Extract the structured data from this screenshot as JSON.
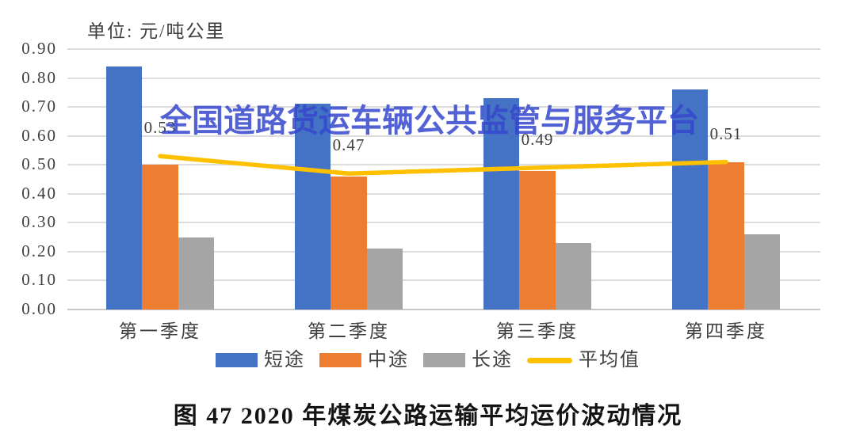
{
  "unit_label": "单位: 元/吨公里",
  "watermark_text": "全国道路货运车辆公共监管与服务平台",
  "caption": "图 47 2020 年煤炭公路运输平均运价波动情况",
  "colors": {
    "short_haul": "#4472C4",
    "mid_haul": "#ED7D31",
    "long_haul": "#A5A5A5",
    "average_line": "#FFC000",
    "watermark": "#3547CD",
    "gridline": "#DCDCDC",
    "axis_text": "#3F3F3F"
  },
  "chart_data": {
    "type": "bar",
    "title": "图 47 2020 年煤炭公路运输平均运价波动情况",
    "unit": "元/吨公里",
    "categories": [
      "第一季度",
      "第二季度",
      "第三季度",
      "第四季度"
    ],
    "series": [
      {
        "name": "短途",
        "kind": "bar",
        "color": "#4472C4",
        "values": [
          0.84,
          0.71,
          0.73,
          0.76
        ]
      },
      {
        "name": "中途",
        "kind": "bar",
        "color": "#ED7D31",
        "values": [
          0.5,
          0.46,
          0.48,
          0.51
        ]
      },
      {
        "name": "长途",
        "kind": "bar",
        "color": "#A5A5A5",
        "values": [
          0.25,
          0.21,
          0.23,
          0.26
        ]
      },
      {
        "name": "平均值",
        "kind": "line",
        "color": "#FFC000",
        "values": [
          0.53,
          0.47,
          0.49,
          0.51
        ],
        "point_labels": [
          "0.53",
          "0.47",
          "0.49",
          "0.51"
        ]
      }
    ],
    "ylim": [
      0,
      0.9
    ],
    "ytick_labels": [
      "0.90",
      "0.80",
      "0.70",
      "0.60",
      "0.50",
      "0.40",
      "0.30",
      "0.20",
      "0.10",
      "0.00"
    ],
    "grid": true,
    "legend_position": "bottom",
    "legend_entries": [
      "短途",
      "中途",
      "长途",
      "平均值"
    ]
  }
}
